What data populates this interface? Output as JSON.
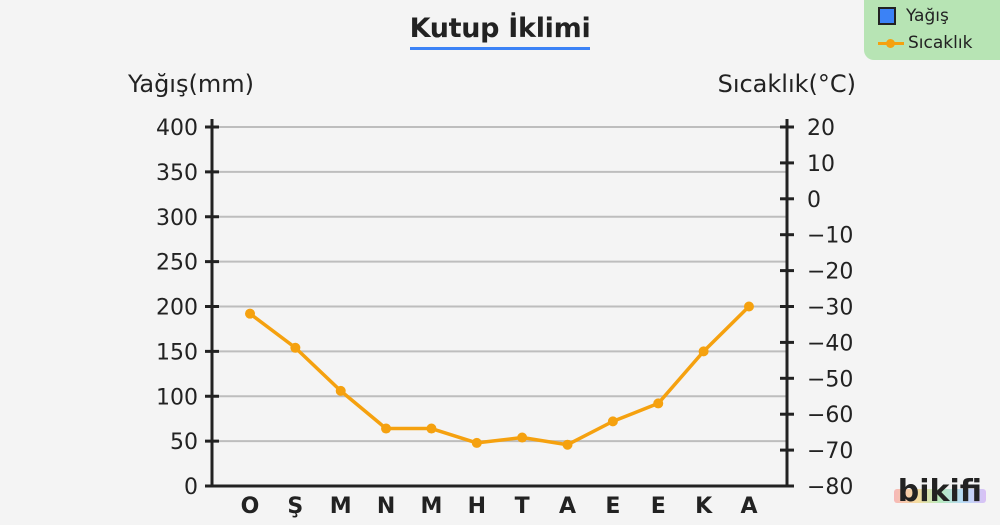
{
  "title": "Kutup İklimi",
  "legend": {
    "precip_label": "Yağış",
    "temp_label": "Sıcaklık"
  },
  "logo_text": "bikifi",
  "colors": {
    "temperature_line": "#f5a10f",
    "precipitation": "#3b82f6",
    "legend_bg": "#b7e4b4",
    "grid": "#bdbdbd"
  },
  "chart_data": {
    "type": "line",
    "title": "Kutup İklimi",
    "categories": [
      "O",
      "Ş",
      "M",
      "N",
      "M",
      "H",
      "T",
      "A",
      "E",
      "E",
      "K",
      "A"
    ],
    "ylabel_left": "Yağış(mm)",
    "ylabel_right": "Sıcaklık(°C)",
    "ylim_left": [
      0,
      400
    ],
    "yticks_left": [
      0,
      50,
      100,
      150,
      200,
      250,
      300,
      350,
      400
    ],
    "ylim_right": [
      -80,
      20
    ],
    "yticks_right": [
      20,
      10,
      0,
      -10,
      -20,
      -30,
      -40,
      -50,
      -60,
      -70,
      -80
    ],
    "series": [
      {
        "name": "Yağış",
        "axis": "left",
        "values": [
          0,
          0,
          0,
          0,
          0,
          0,
          0,
          0,
          0,
          0,
          0,
          0
        ]
      },
      {
        "name": "Sıcaklık",
        "axis": "right",
        "values": [
          -32,
          -41.5,
          -53.5,
          -64,
          -64,
          -68,
          -66.5,
          -68.5,
          -62,
          -57,
          -42.5,
          -30
        ]
      }
    ],
    "grid": true,
    "legend_position": "top-right"
  }
}
